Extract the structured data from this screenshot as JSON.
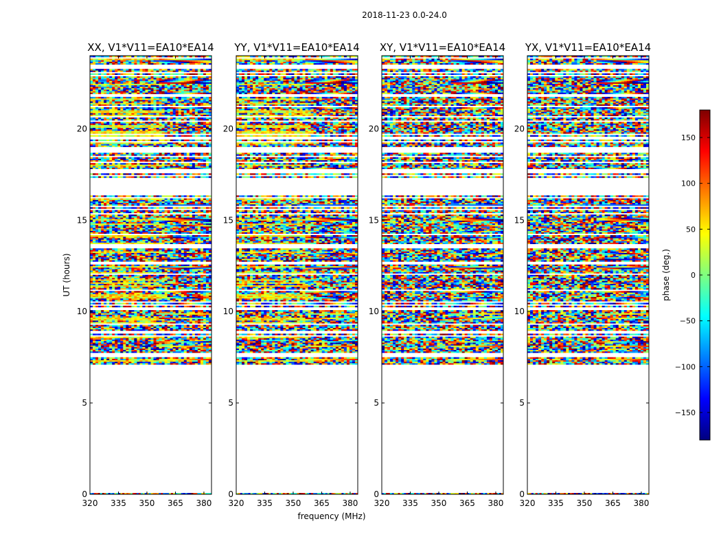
{
  "figure_title": "2018-11-23 0.0-24.0",
  "chart_data": [
    {
      "type": "heatmap",
      "title": "XX, V1*V11=EA10*EA14",
      "ylabel": "UT (hours)",
      "xlabel": "",
      "x_ticks": [
        320,
        335,
        350,
        365,
        380
      ],
      "x_ticklabels": [
        "320",
        "335",
        "350",
        "365",
        "380"
      ],
      "y_ticks": [
        0,
        5,
        10,
        15,
        20
      ],
      "y_ticklabels": [
        "0",
        "5",
        "10",
        "15",
        "20"
      ],
      "xlim": [
        320,
        384
      ],
      "ylim": [
        0,
        24
      ],
      "data_ut_ranges": [
        [
          7.1,
          24.0
        ],
        [
          0.0,
          0.05
        ]
      ],
      "colormap": "jet"
    },
    {
      "type": "heatmap",
      "title": "YY, V1*V11=EA10*EA14",
      "ylabel": "",
      "xlabel": "frequency (MHz)",
      "x_ticks": [
        320,
        335,
        350,
        365,
        380
      ],
      "x_ticklabels": [
        "320",
        "335",
        "350",
        "365",
        "380"
      ],
      "y_ticks": [
        0,
        5,
        10,
        15,
        20
      ],
      "y_ticklabels": [
        "0",
        "5",
        "10",
        "15",
        "20"
      ],
      "xlim": [
        320,
        384
      ],
      "ylim": [
        0,
        24
      ],
      "data_ut_ranges": [
        [
          7.1,
          24.0
        ],
        [
          0.0,
          0.05
        ]
      ],
      "colormap": "jet"
    },
    {
      "type": "heatmap",
      "title": "XY, V1*V11=EA10*EA14",
      "ylabel": "",
      "xlabel": "",
      "x_ticks": [
        320,
        335,
        350,
        365,
        380
      ],
      "x_ticklabels": [
        "320",
        "335",
        "350",
        "365",
        "380"
      ],
      "y_ticks": [
        0,
        5,
        10,
        15,
        20
      ],
      "y_ticklabels": [
        "0",
        "5",
        "10",
        "15",
        "20"
      ],
      "xlim": [
        320,
        384
      ],
      "ylim": [
        0,
        24
      ],
      "data_ut_ranges": [
        [
          7.1,
          24.0
        ],
        [
          0.0,
          0.05
        ]
      ],
      "colormap": "jet"
    },
    {
      "type": "heatmap",
      "title": "YX, V1*V11=EA10*EA14",
      "ylabel": "",
      "xlabel": "",
      "x_ticks": [
        320,
        335,
        350,
        365,
        380
      ],
      "x_ticklabels": [
        "320",
        "335",
        "350",
        "365",
        "380"
      ],
      "y_ticks": [
        0,
        5,
        10,
        15,
        20
      ],
      "y_ticklabels": [
        "0",
        "5",
        "10",
        "15",
        "20"
      ],
      "xlim": [
        320,
        384
      ],
      "ylim": [
        0,
        24
      ],
      "data_ut_ranges": [
        [
          7.1,
          24.0
        ],
        [
          0.0,
          0.05
        ]
      ],
      "colormap": "jet"
    }
  ],
  "colorbar": {
    "label": "phase (deg.)",
    "range": [
      -180,
      180
    ],
    "ticks": [
      150,
      100,
      50,
      0,
      -50,
      -100,
      -150
    ],
    "ticklabels": [
      "150",
      "100",
      "50",
      "0",
      "−50",
      "−100",
      "−150"
    ],
    "colormap": "jet",
    "colors": [
      "#00007f",
      "#0000ff",
      "#007fff",
      "#00ffff",
      "#7fff7f",
      "#ffff00",
      "#ff7f00",
      "#ff0000",
      "#7f0000"
    ]
  }
}
